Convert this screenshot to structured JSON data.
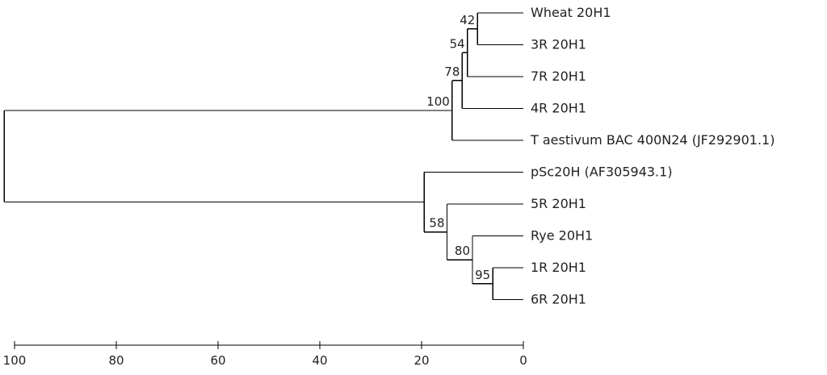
{
  "chart_data": {
    "type": "dendrogram",
    "title": "",
    "scale_axis": {
      "ticks": [
        "100",
        "80",
        "60",
        "40",
        "20",
        "0"
      ],
      "range": [
        100,
        0
      ]
    },
    "leaves": [
      "Wheat 20H1",
      "3R 20H1",
      "7R 20H1",
      "4R 20H1",
      "T aestivum BAC 400N24 (JF292901.1)",
      "pSc20H (AF305943.1)",
      "5R 20H1",
      "Rye 20H1",
      "1R 20H1",
      "6R 20H1"
    ],
    "nodes": [
      {
        "id": "n42",
        "height": 9,
        "children": [
          "Wheat 20H1",
          "3R 20H1"
        ],
        "support": "42"
      },
      {
        "id": "n54",
        "height": 11,
        "children": [
          "n42",
          "7R 20H1"
        ],
        "support": "54"
      },
      {
        "id": "n78",
        "height": 12,
        "children": [
          "n54",
          "4R 20H1"
        ],
        "support": "78"
      },
      {
        "id": "n100",
        "height": 14,
        "children": [
          "n78",
          "T aestivum BAC 400N24 (JF292901.1)"
        ],
        "support": "100"
      },
      {
        "id": "n95",
        "height": 6,
        "children": [
          "1R 20H1",
          "6R 20H1"
        ],
        "support": "95"
      },
      {
        "id": "n80",
        "height": 10,
        "children": [
          "Rye 20H1",
          "n95"
        ],
        "support": "80"
      },
      {
        "id": "n58",
        "height": 15,
        "children": [
          "5R 20H1",
          "n80"
        ],
        "support": "58"
      },
      {
        "id": "nB",
        "height": 19.5,
        "children": [
          "pSc20H (AF305943.1)",
          "n58"
        ],
        "support": ""
      },
      {
        "id": "root",
        "height": 102,
        "children": [
          "n100",
          "nB"
        ],
        "support": ""
      }
    ]
  }
}
